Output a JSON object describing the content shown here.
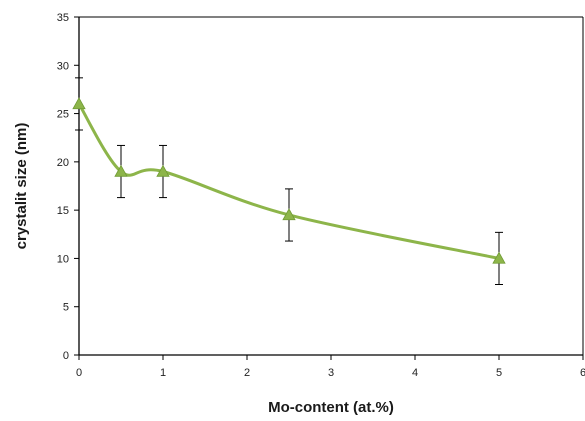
{
  "chart_data": {
    "type": "line",
    "title": "",
    "xlabel": "Mo-content (at.%)",
    "ylabel": "crystalit size (nm)",
    "xlim": [
      0,
      6
    ],
    "ylim": [
      0,
      35
    ],
    "xticks": [
      "0",
      "1",
      "2",
      "3",
      "4",
      "5",
      "6"
    ],
    "yticks": [
      "0",
      "5",
      "10",
      "15",
      "20",
      "25",
      "30",
      "35"
    ],
    "grid": false,
    "legend": "none",
    "smooth": true,
    "series": [
      {
        "x": [
          0,
          0.5,
          1,
          2.5,
          5
        ],
        "y": [
          26,
          19,
          19,
          14.5,
          10
        ],
        "error": [
          2.7,
          2.7,
          2.7,
          2.7,
          2.7
        ],
        "marker": "triangle",
        "color": "#8db54a"
      }
    ]
  }
}
